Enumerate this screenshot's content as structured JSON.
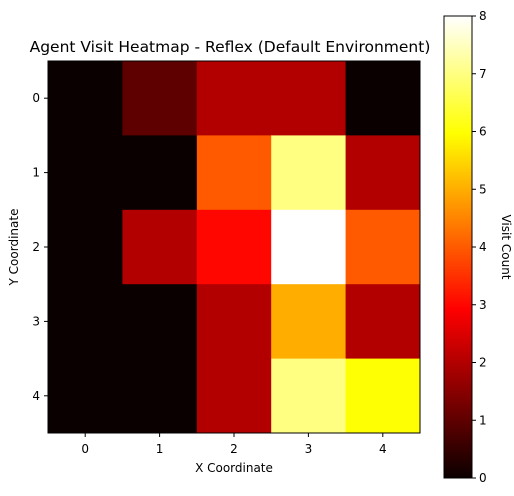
{
  "chart_data": {
    "type": "heatmap",
    "title": "Agent Visit Heatmap - Reflex (Default Environment)",
    "xlabel": "X Coordinate",
    "ylabel": "Y Coordinate",
    "x_ticks": [
      "0",
      "1",
      "2",
      "3",
      "4"
    ],
    "y_ticks": [
      "0",
      "1",
      "2",
      "3",
      "4"
    ],
    "values": [
      [
        0,
        1,
        2,
        2,
        0
      ],
      [
        0,
        0,
        4,
        7,
        2
      ],
      [
        0,
        2,
        3,
        8,
        4
      ],
      [
        0,
        0,
        2,
        5,
        2
      ],
      [
        0,
        0,
        2,
        7,
        6
      ]
    ],
    "colormap": "hot",
    "vmin": 0,
    "vmax": 8,
    "colorbar": {
      "label": "Visit Count",
      "ticks": [
        "0",
        "1",
        "2",
        "3",
        "4",
        "5",
        "6",
        "7",
        "8"
      ]
    }
  }
}
